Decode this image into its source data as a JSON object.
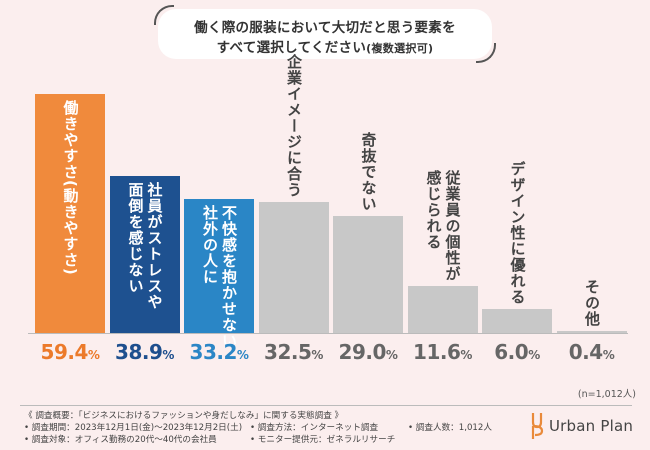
{
  "title": {
    "line1": "働く際の服装において大切だと思う要素を",
    "line2_main": "すべて選択してください",
    "line2_note": "(複数選択可)"
  },
  "colors": {
    "background": "#fbeeee",
    "bar_orange": "#f08a3c",
    "bar_navy": "#1e5190",
    "bar_blue": "#2a86c6",
    "bar_gray": "#c8c8c8",
    "text_orange": "#ec7a2a",
    "text_navy": "#1e4f8e",
    "text_blue": "#2b86c6",
    "text_gray": "#666666"
  },
  "chart_data": {
    "type": "bar",
    "title": "働く際の服装において大切だと思う要素をすべて選択してください(複数選択可)",
    "categories": [
      "働きやすさ(動きやすさ)",
      "社員がストレスや面倒を感じない",
      "不快感を抱かせない社外の人に",
      "企業イメージに合う",
      "奇抜でない",
      "従業員の個性が感じられる",
      "デザイン性に優れる",
      "その他"
    ],
    "category_lines": [
      [
        "働きやすさ(動きやすさ)"
      ],
      [
        "社員がストレスや",
        "面倒を感じない"
      ],
      [
        "不快感を抱かせない",
        "社外の人に"
      ],
      [
        "企業イメージに合う"
      ],
      [
        "奇抜でない"
      ],
      [
        "従業員の個性が",
        "感じられる"
      ],
      [
        "デザイン性に優れる"
      ],
      [
        "その他"
      ]
    ],
    "values": [
      59.4,
      38.9,
      33.2,
      32.5,
      29.0,
      11.6,
      6.0,
      0.4
    ],
    "value_labels": [
      "59.4",
      "38.9",
      "33.2",
      "32.5",
      "29.0",
      "11.6",
      "6.0",
      "0.4"
    ],
    "unit": "%",
    "ylim": [
      0,
      59.4
    ],
    "xlabel": "",
    "ylabel": "",
    "grid": false,
    "sample_note": "(n=1,012人)"
  },
  "footer": {
    "survey_summary": "《 調査概要：「ビジネスにおけるファッションや身だしなみ」に関する実態調査 》",
    "period": "• 調査期間：2023年12月1日(金)～2023年12月2日(土)",
    "method": "• 調査方法：インターネット調査",
    "count": "• 調査人数：1,012人",
    "target": "• 調査対象：オフィス勤務の20代～40代の会社員",
    "provider": "• モニター提供元：ゼネラルリサーチ"
  },
  "logo": {
    "text": "Urban Plan"
  }
}
